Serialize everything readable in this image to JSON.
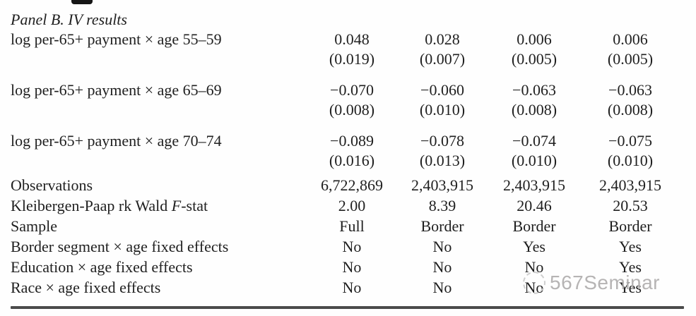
{
  "panel_title": "Panel B. IV results",
  "coef_rows": [
    {
      "label": "log per-65+ payment × age 55–59",
      "values": [
        "0.048",
        "0.028",
        "0.006",
        "0.006"
      ],
      "ses": [
        "(0.019)",
        "(0.007)",
        "(0.005)",
        "(0.005)"
      ]
    },
    {
      "label": "log per-65+ payment × age 65–69",
      "values": [
        "−0.070",
        "−0.060",
        "−0.063",
        "−0.063"
      ],
      "ses": [
        "(0.008)",
        "(0.010)",
        "(0.008)",
        "(0.008)"
      ]
    },
    {
      "label": "log per-65+ payment × age 70–74",
      "values": [
        "−0.089",
        "−0.078",
        "−0.074",
        "−0.075"
      ],
      "ses": [
        "(0.016)",
        "(0.013)",
        "(0.010)",
        "(0.010)"
      ]
    }
  ],
  "stat_rows": [
    {
      "label": "Observations",
      "values": [
        "6,722,869",
        "2,403,915",
        "2,403,915",
        "2,403,915"
      ]
    },
    {
      "label_pre": "Kleibergen-Paap rk Wald ",
      "label_em": "F",
      "label_post": "-stat",
      "values": [
        "2.00",
        "8.39",
        "20.46",
        "20.53"
      ]
    },
    {
      "label": "Sample",
      "values": [
        "Full",
        "Border",
        "Border",
        "Border"
      ]
    },
    {
      "label": "Border segment × age fixed effects",
      "values": [
        "No",
        "No",
        "Yes",
        "Yes"
      ]
    },
    {
      "label": "Education × age fixed effects",
      "values": [
        "No",
        "No",
        "No",
        "Yes"
      ]
    },
    {
      "label": "Race × age fixed effects",
      "values": [
        "No",
        "No",
        "No",
        "Yes"
      ]
    }
  ],
  "watermark": {
    "text": "567Seminar"
  },
  "colors": {
    "text": "#1f1f1f",
    "rule": "#4a4a4a",
    "watermark": "#b0aeae"
  }
}
